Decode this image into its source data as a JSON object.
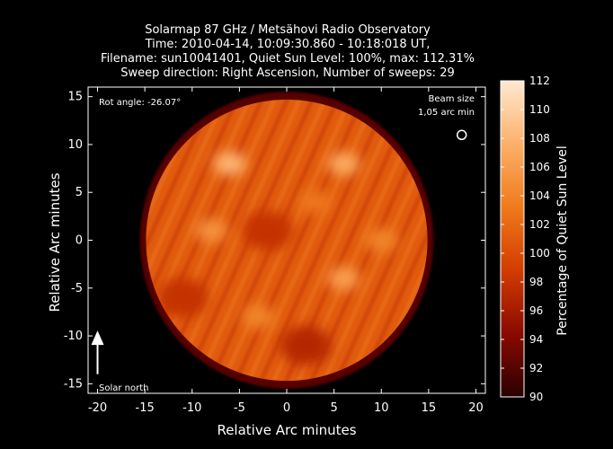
{
  "chart_data": {
    "type": "heatmap",
    "title_lines": [
      "Solarmap 87 GHz / Metsähovi Radio Observatory",
      "Time: 2010-04-14, 10:09:30.860 - 10:18:018 UT,",
      "Filename: sun10041401, Quiet Sun Level: 100%, max: 112.31%",
      "Sweep direction: Right Ascension, Number of sweeps: 29"
    ],
    "xlabel": "Relative Arc minutes",
    "ylabel": "Relative Arc minutes",
    "xlim": [
      -21,
      21
    ],
    "ylim": [
      -16,
      16
    ],
    "xticks": [
      -20,
      -15,
      -10,
      -5,
      0,
      5,
      10,
      15,
      20
    ],
    "yticks": [
      -15,
      -10,
      -5,
      0,
      5,
      10,
      15
    ],
    "colorbar": {
      "label": "Percentage of Quiet Sun Level",
      "range": [
        90,
        112
      ],
      "ticks": [
        90,
        92,
        94,
        96,
        98,
        100,
        102,
        104,
        106,
        108,
        110,
        112
      ],
      "colormap": [
        "#2a0000",
        "#8a0a00",
        "#d23c00",
        "#f07a1c",
        "#fcb06a",
        "#ffe9d0"
      ]
    },
    "sun_disk": {
      "center": [
        0,
        0
      ],
      "radius": 16,
      "mean_level": 101
    },
    "bright_regions": [
      {
        "x": -6,
        "y": 8,
        "level": 108
      },
      {
        "x": 6,
        "y": 8,
        "level": 107
      },
      {
        "x": 6,
        "y": -4,
        "level": 106
      },
      {
        "x": -8,
        "y": 1,
        "level": 105
      },
      {
        "x": 10,
        "y": 0,
        "level": 104
      },
      {
        "x": -3,
        "y": -8,
        "level": 104
      },
      {
        "x": 3,
        "y": 4,
        "level": 103
      }
    ],
    "dark_regions": [
      {
        "x": -2,
        "y": 1,
        "level": 98
      },
      {
        "x": 2,
        "y": -11,
        "level": 97
      },
      {
        "x": -11,
        "y": -6,
        "level": 98
      }
    ],
    "annotations": {
      "rot_angle": "Rot angle: -26.07°",
      "beam_size_line1": "Beam size",
      "beam_size_line2": "1,05 arc min",
      "beam_marker": {
        "x": 18.5,
        "y": 11
      },
      "solar_north": "Solar north",
      "north_arrow": {
        "x": -20,
        "y_from": -14,
        "y_to": -10
      }
    }
  }
}
